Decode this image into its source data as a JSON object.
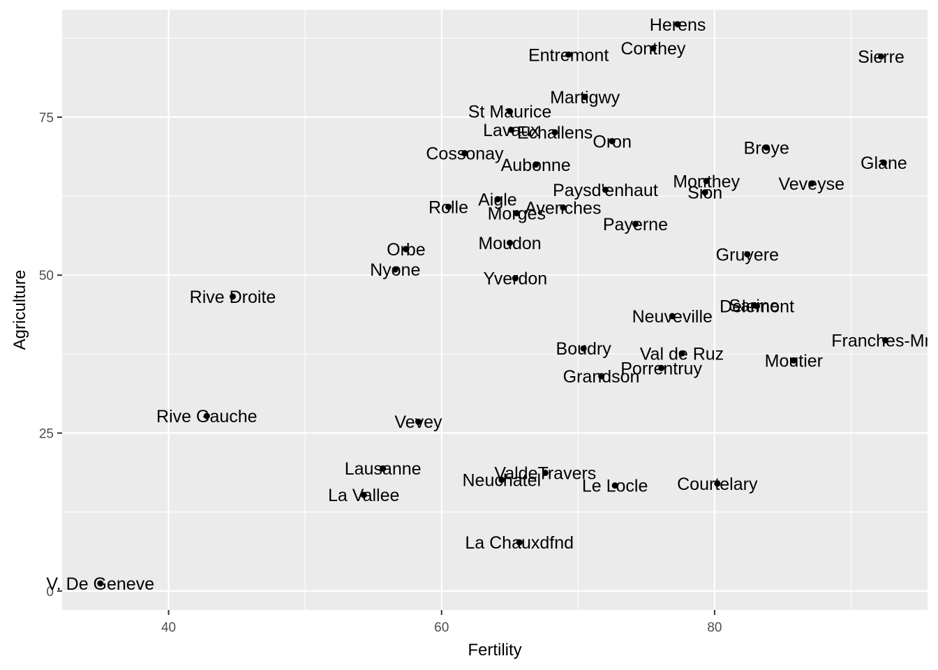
{
  "chart_data": {
    "type": "scatter",
    "title": "",
    "xlabel": "Fertility",
    "ylabel": "Agriculture",
    "xlim": [
      32.2,
      95.6
    ],
    "ylim": [
      -3.0,
      92.0
    ],
    "x_ticks": [
      40,
      60,
      80
    ],
    "y_ticks": [
      0,
      25,
      50,
      75
    ],
    "grid": true,
    "legend": "none",
    "colors": {
      "panel": "#ebebeb",
      "grid": "#ffffff",
      "point": "#000000",
      "label": "#000000"
    },
    "points": [
      {
        "name": "Courtelary",
        "x": 80.2,
        "y": 17.0
      },
      {
        "name": "Delemont",
        "x": 83.1,
        "y": 45.1
      },
      {
        "name": "Franches-Mnt",
        "x": 92.5,
        "y": 39.7
      },
      {
        "name": "Moutier",
        "x": 85.8,
        "y": 36.5
      },
      {
        "name": "Neuveville",
        "x": 76.9,
        "y": 43.5
      },
      {
        "name": "Porrentruy",
        "x": 76.1,
        "y": 35.3
      },
      {
        "name": "Broye",
        "x": 83.8,
        "y": 70.2
      },
      {
        "name": "Glane",
        "x": 92.4,
        "y": 67.8
      },
      {
        "name": "Gruyere",
        "x": 82.4,
        "y": 53.3
      },
      {
        "name": "Sarine",
        "x": 82.9,
        "y": 45.2
      },
      {
        "name": "Veveyse",
        "x": 87.1,
        "y": 64.5
      },
      {
        "name": "Aigle",
        "x": 64.1,
        "y": 62.0
      },
      {
        "name": "Aubonne",
        "x": 66.9,
        "y": 67.5
      },
      {
        "name": "Avenches",
        "x": 68.9,
        "y": 60.7
      },
      {
        "name": "Cossonay",
        "x": 61.7,
        "y": 69.3
      },
      {
        "name": "Echallens",
        "x": 68.3,
        "y": 72.6
      },
      {
        "name": "Grandson",
        "x": 71.7,
        "y": 34.0
      },
      {
        "name": "Lausanne",
        "x": 55.7,
        "y": 19.4
      },
      {
        "name": "La Vallee",
        "x": 54.3,
        "y": 15.2
      },
      {
        "name": "Lavaux",
        "x": 65.1,
        "y": 73.0
      },
      {
        "name": "Morges",
        "x": 65.5,
        "y": 59.8
      },
      {
        "name": "Moudon",
        "x": 65.0,
        "y": 55.1
      },
      {
        "name": "Nyone",
        "x": 56.6,
        "y": 50.9
      },
      {
        "name": "Orbe",
        "x": 57.4,
        "y": 54.1
      },
      {
        "name": "Oron",
        "x": 72.5,
        "y": 71.2
      },
      {
        "name": "Payerne",
        "x": 74.2,
        "y": 58.1
      },
      {
        "name": "Paysd'enhaut",
        "x": 72.0,
        "y": 63.5
      },
      {
        "name": "Rolle",
        "x": 60.5,
        "y": 60.8
      },
      {
        "name": "Vevey",
        "x": 58.3,
        "y": 26.8
      },
      {
        "name": "Yverdon",
        "x": 65.4,
        "y": 49.5
      },
      {
        "name": "Conthey",
        "x": 75.5,
        "y": 85.9
      },
      {
        "name": "Entremont",
        "x": 69.3,
        "y": 84.9
      },
      {
        "name": "Herens",
        "x": 77.3,
        "y": 89.7
      },
      {
        "name": "Martigwy",
        "x": 70.5,
        "y": 78.2
      },
      {
        "name": "Monthey",
        "x": 79.4,
        "y": 64.9
      },
      {
        "name": "St Maurice",
        "x": 65.0,
        "y": 75.9
      },
      {
        "name": "Sierre",
        "x": 92.2,
        "y": 84.6
      },
      {
        "name": "Sion",
        "x": 79.3,
        "y": 63.1
      },
      {
        "name": "Boudry",
        "x": 70.4,
        "y": 38.4
      },
      {
        "name": "La Chauxdfnd",
        "x": 65.7,
        "y": 7.7
      },
      {
        "name": "Le Locle",
        "x": 72.7,
        "y": 16.7
      },
      {
        "name": "Neuchatel",
        "x": 64.4,
        "y": 17.6
      },
      {
        "name": "Val de Ruz",
        "x": 77.6,
        "y": 37.6
      },
      {
        "name": "ValdeTravers",
        "x": 67.6,
        "y": 18.7
      },
      {
        "name": "V. De Geneve",
        "x": 35.0,
        "y": 1.2
      },
      {
        "name": "Rive Droite",
        "x": 44.7,
        "y": 46.6
      },
      {
        "name": "Rive Gauche",
        "x": 42.8,
        "y": 27.7
      }
    ]
  }
}
